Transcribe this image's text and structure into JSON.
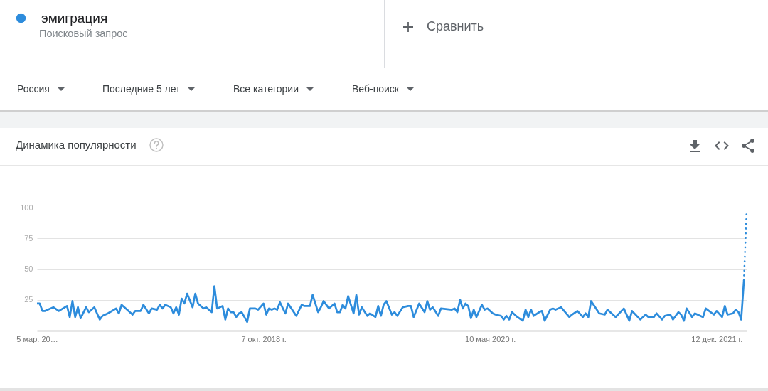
{
  "chart_data": {
    "type": "line",
    "title": "Динамика популярности",
    "annotations": [
      "Поисковый запрос",
      "Сравнить",
      "Россия",
      "Последние 5 лет",
      "Все категории",
      "Веб-поиск"
    ],
    "series": [
      {
        "name": "эмиграция",
        "color": "#2d8cdc",
        "x": [
          "2017-03-05",
          "2017-03-12",
          "2017-03-19",
          "2017-03-26",
          "2017-04-16",
          "2017-04-30",
          "2017-05-21",
          "2017-05-28",
          "2017-06-04",
          "2017-06-11",
          "2017-06-18",
          "2017-06-25",
          "2017-07-09",
          "2017-07-16",
          "2017-07-30",
          "2017-08-13",
          "2017-08-20",
          "2017-09-03",
          "2017-09-24",
          "2017-10-01",
          "2017-10-08",
          "2017-10-22",
          "2017-11-05",
          "2017-11-12",
          "2017-11-26",
          "2017-12-03",
          "2017-12-17",
          "2017-12-24",
          "2018-01-07",
          "2018-01-14",
          "2018-01-21",
          "2018-01-28",
          "2018-02-11",
          "2018-02-18",
          "2018-02-25",
          "2018-03-04",
          "2018-03-11",
          "2018-03-18",
          "2018-03-25",
          "2018-04-08",
          "2018-04-15",
          "2018-04-22",
          "2018-05-06",
          "2018-05-13",
          "2018-05-27",
          "2018-06-03",
          "2018-06-10",
          "2018-06-24",
          "2018-07-01",
          "2018-07-08",
          "2018-07-15",
          "2018-07-22",
          "2018-07-29",
          "2018-08-05",
          "2018-08-12",
          "2018-08-26",
          "2018-09-02",
          "2018-09-16",
          "2018-09-23",
          "2018-10-07",
          "2018-10-14",
          "2018-10-21",
          "2018-10-28",
          "2018-11-04",
          "2018-11-11",
          "2018-11-18",
          "2018-12-02",
          "2018-12-09",
          "2018-12-30",
          "2019-01-13",
          "2019-01-20",
          "2019-02-03",
          "2019-02-10",
          "2019-02-24",
          "2019-03-03",
          "2019-03-10",
          "2019-03-24",
          "2019-04-07",
          "2019-04-14",
          "2019-04-21",
          "2019-04-28",
          "2019-05-05",
          "2019-05-12",
          "2019-05-26",
          "2019-06-02",
          "2019-06-09",
          "2019-06-16",
          "2019-06-30",
          "2019-07-07",
          "2019-07-21",
          "2019-07-28",
          "2019-08-04",
          "2019-08-11",
          "2019-08-18",
          "2019-09-01",
          "2019-09-08",
          "2019-09-15",
          "2019-09-29",
          "2019-10-13",
          "2019-10-20",
          "2019-10-27",
          "2019-11-10",
          "2019-11-24",
          "2019-12-01",
          "2019-12-08",
          "2019-12-15",
          "2019-12-29",
          "2020-01-05",
          "2020-02-02",
          "2020-02-09",
          "2020-02-16",
          "2020-02-23",
          "2020-03-01",
          "2020-03-08",
          "2020-03-15",
          "2020-03-22",
          "2020-03-29",
          "2020-04-05",
          "2020-04-19",
          "2020-04-26",
          "2020-05-03",
          "2020-05-17",
          "2020-05-24",
          "2020-06-07",
          "2020-06-14",
          "2020-06-21",
          "2020-06-28",
          "2020-07-05",
          "2020-07-19",
          "2020-08-02",
          "2020-08-09",
          "2020-08-16",
          "2020-08-23",
          "2020-08-30",
          "2020-09-13",
          "2020-09-20",
          "2020-09-27",
          "2020-10-11",
          "2020-10-18",
          "2020-10-25",
          "2020-11-08",
          "2020-11-29",
          "2020-12-06",
          "2020-12-20",
          "2021-01-03",
          "2021-01-10",
          "2021-01-17",
          "2021-01-24",
          "2021-02-14",
          "2021-02-28",
          "2021-03-07",
          "2021-03-28",
          "2021-04-18",
          "2021-05-02",
          "2021-05-09",
          "2021-05-30",
          "2021-06-13",
          "2021-06-20",
          "2021-07-04",
          "2021-07-11",
          "2021-07-25",
          "2021-08-01",
          "2021-08-15",
          "2021-08-22",
          "2021-09-05",
          "2021-09-12",
          "2021-09-19",
          "2021-09-26",
          "2021-10-10",
          "2021-10-17",
          "2021-11-07",
          "2021-11-14",
          "2021-12-05",
          "2021-12-12",
          "2021-12-26",
          "2022-01-02",
          "2022-01-09",
          "2022-01-23",
          "2022-01-30",
          "2022-02-06",
          "2022-02-13",
          "2022-02-20"
        ],
        "values": [
          22,
          22,
          16,
          16,
          19,
          16,
          20,
          11,
          24,
          11,
          19,
          10,
          19,
          15,
          19,
          9,
          12,
          14,
          18,
          14,
          21,
          17,
          13,
          16,
          16,
          21,
          14,
          18,
          17,
          21,
          18,
          21,
          19,
          14,
          19,
          13,
          26,
          22,
          30,
          19,
          30,
          22,
          18,
          19,
          15,
          36,
          18,
          20,
          9,
          18,
          15,
          15,
          11,
          14,
          15,
          7,
          18,
          18,
          17,
          22,
          13,
          18,
          17,
          18,
          17,
          23,
          14,
          22,
          12,
          21,
          20,
          20,
          29,
          15,
          19,
          24,
          18,
          22,
          15,
          15,
          21,
          18,
          28,
          14,
          29,
          13,
          19,
          12,
          14,
          11,
          20,
          12,
          21,
          24,
          13,
          15,
          12,
          19,
          20,
          20,
          11,
          22,
          15,
          24,
          17,
          19,
          12,
          18,
          17,
          18,
          15,
          25,
          18,
          22,
          20,
          10,
          17,
          11,
          21,
          17,
          18,
          14,
          13,
          12,
          9,
          12,
          9,
          15,
          11,
          8,
          17,
          11,
          17,
          12,
          15,
          16,
          8,
          17,
          18,
          17,
          19,
          11,
          13,
          16,
          11,
          14,
          11,
          24,
          14,
          13,
          17,
          11,
          18,
          8,
          16,
          9,
          13,
          11,
          11,
          14,
          9,
          12,
          13,
          9,
          15,
          13,
          8,
          18,
          11,
          14,
          11,
          18,
          13,
          16,
          11,
          20,
          13,
          14,
          17,
          15,
          9,
          41
        ]
      },
      {
        "color": "#2d8cdc",
        "line_style": "dotted",
        "x": [
          "2022-02-20",
          "2022-02-27"
        ],
        "values": [
          41,
          98
        ]
      }
    ],
    "line_style": "solid",
    "xlim": [
      "2017-03-05",
      "2022-02-27"
    ],
    "xticks": [
      {
        "value": "2017-03-05",
        "label": "5 мар. 20…"
      },
      {
        "value": "2018-10-07",
        "label": "7 окт. 2018 г."
      },
      {
        "value": "2020-05-10",
        "label": "10 мая 2020 г."
      },
      {
        "value": "2021-12-12",
        "label": "12 дек. 2021 г."
      }
    ],
    "ylim": [
      0,
      100
    ],
    "yticks": [
      25,
      50,
      75,
      100
    ],
    "grid": "y",
    "legend": "top left"
  }
}
